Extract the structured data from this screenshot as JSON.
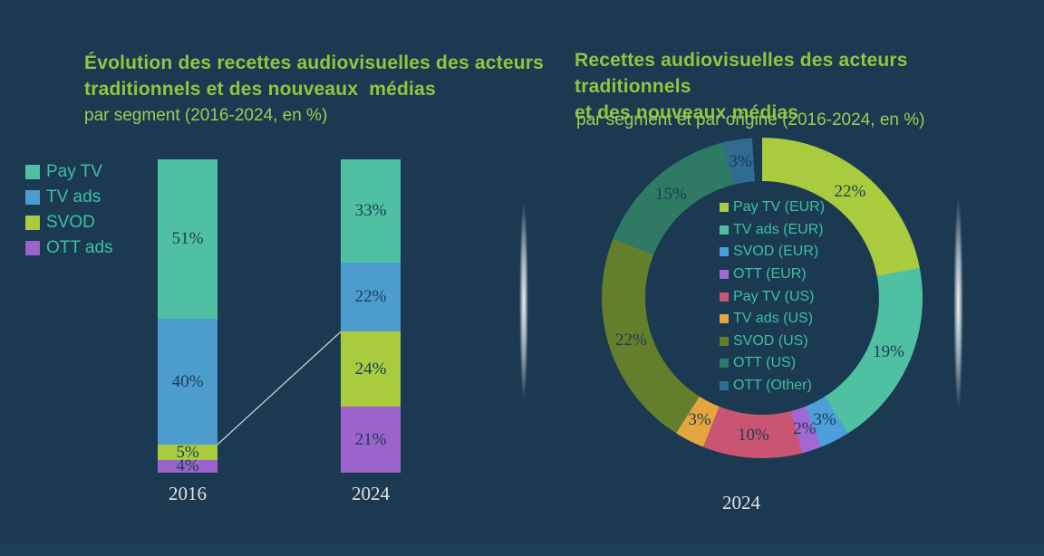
{
  "page": {
    "background": "#1B3A52",
    "footer_band_color": "#1F4259",
    "value_label_color": "#1C3C55",
    "axis_label_color": "#E3E3E3",
    "title_color": "#8FC73F",
    "subtitle_color": "#9CCC52",
    "legend_text_color": "#3EBFA0",
    "connector_line_color": "#C9D1D6"
  },
  "chart_data": [
    {
      "type": "bar",
      "stacked": true,
      "title": "Évolution des recettes audiovisuelles des acteurs\ntraditionnels et des nouveaux  médias",
      "subtitle": "par segment (2016-2024, en %)",
      "unit": "%",
      "ylim": [
        0,
        100
      ],
      "grid": false,
      "legend_position": "left",
      "categories": [
        "2016",
        "2024"
      ],
      "series": [
        {
          "name": "Pay TV",
          "color": "#4FC1A2",
          "values": [
            51,
            33
          ]
        },
        {
          "name": "TV ads",
          "color": "#4C9CCE",
          "values": [
            40,
            22
          ]
        },
        {
          "name": "SVOD",
          "color": "#A8CC3E",
          "values": [
            5,
            24
          ]
        },
        {
          "name": "OTT ads",
          "color": "#9B63CB",
          "values": [
            4,
            21
          ]
        }
      ],
      "value_labels": [
        "51%",
        "40%",
        "5%",
        "4%",
        "33%",
        "22%",
        "24%",
        "21%"
      ],
      "connector_line": {
        "from": "2016 boundary TV ads/SVOD (9% from bottom)",
        "to": "2024 boundary TV ads/SVOD (45% from bottom)"
      }
    },
    {
      "type": "pie",
      "donut": true,
      "title": "Recettes audiovisuelles des acteurs traditionnels\net des nouveaux médias",
      "subtitle": "par segment et par origine (2016-2024, en %)",
      "unit": "%",
      "legend_position": "center",
      "category_label": "2024",
      "slices": [
        {
          "label": "Pay TV (EUR)",
          "value": 22,
          "color": "#A8CC3E"
        },
        {
          "label": "TV ads (EUR)",
          "value": 19,
          "color": "#4FC1A2"
        },
        {
          "label": "SVOD (EUR)",
          "value": 3,
          "color": "#4C9FD8"
        },
        {
          "label": "OTT (EUR)",
          "value": 2,
          "color": "#A468D4"
        },
        {
          "label": "Pay TV (US)",
          "value": 10,
          "color": "#C95572"
        },
        {
          "label": "TV ads (US)",
          "value": 3,
          "color": "#E5A63F"
        },
        {
          "label": "SVOD (US)",
          "value": 22,
          "color": "#647F2B"
        },
        {
          "label": "OTT (US)",
          "value": 15,
          "color": "#2F7A64"
        },
        {
          "label": "OTT (Other)",
          "value": 3,
          "color": "#2F6C8F"
        }
      ]
    }
  ]
}
